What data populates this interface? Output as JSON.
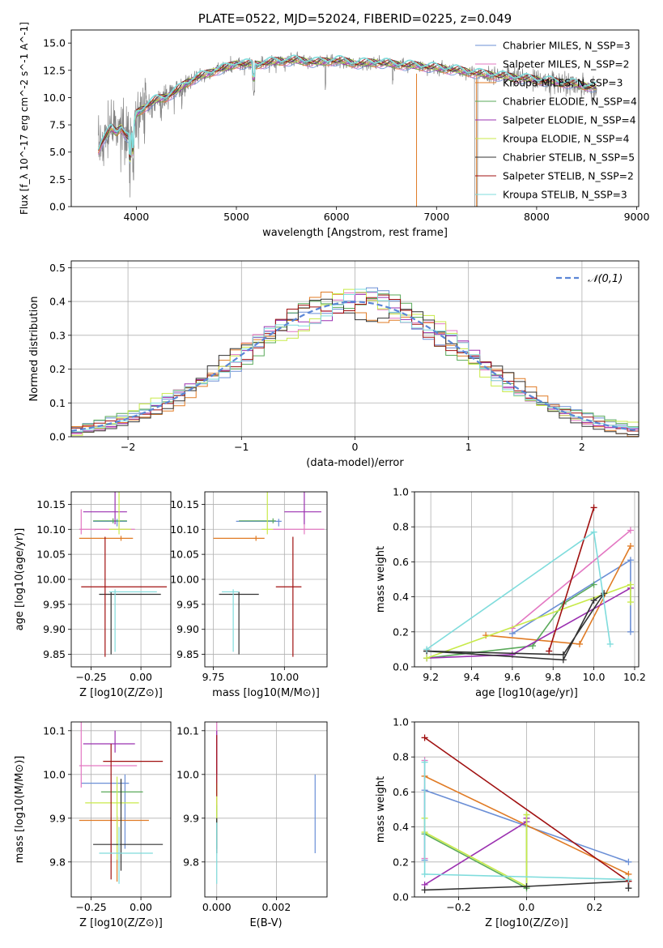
{
  "chart_data": [
    {
      "id": "spectrum",
      "type": "line",
      "title": "PLATE=0522, MJD=52024, FIBERID=0225, z=0.049",
      "xlabel": "wavelength [Angstrom, rest frame]",
      "ylabel": "Flux [f_λ 10^-17 erg cm^-2 s^-1 A^-1]",
      "xlim": [
        3350,
        9020
      ],
      "ylim": [
        0,
        16.2
      ],
      "xticks": [
        4000,
        5000,
        6000,
        7000,
        8000,
        9000
      ],
      "yticks": [
        0.0,
        2.5,
        5.0,
        7.5,
        10.0,
        12.5,
        15.0
      ],
      "legend_position": "upper-right",
      "grid": false,
      "series": [
        {
          "name": "Chabrier MILES, N_SSP=3",
          "color": "#6b8fd6"
        },
        {
          "name": "Salpeter MILES, N_SSP=2",
          "color": "#e377c2"
        },
        {
          "name": "Kroupa MILES, N_SSP=3",
          "color": "#e07b25"
        },
        {
          "name": "Chabrier ELODIE, N_SSP=4",
          "color": "#5aaa5a"
        },
        {
          "name": "Salpeter ELODIE, N_SSP=4",
          "color": "#9b30b0"
        },
        {
          "name": "Kroupa ELODIE, N_SSP=4",
          "color": "#c8ea4a"
        },
        {
          "name": "Chabrier STELIB, N_SSP=5",
          "color": "#333333"
        },
        {
          "name": "Salpeter STELIB, N_SSP=2",
          "color": "#a01010"
        },
        {
          "name": "Kroupa STELIB, N_SSP=3",
          "color": "#7fdcdc"
        }
      ],
      "data_color": "#808080",
      "continuum": {
        "x": [
          3620,
          3650,
          3700,
          3750,
          3800,
          3850,
          3900,
          3950,
          4000,
          4100,
          4200,
          4300,
          4400,
          4500,
          4600,
          4700,
          4800,
          4900,
          5000,
          5200,
          5400,
          5600,
          5800,
          6000,
          6200,
          6400,
          6600,
          6800,
          7000,
          7200,
          7400,
          7600,
          7800,
          8000,
          8200,
          8400,
          8600
        ],
        "y": [
          5.2,
          5.8,
          6.5,
          7.2,
          6.8,
          7.3,
          6.5,
          6.0,
          8.5,
          9.2,
          9.8,
          10.0,
          10.6,
          11.3,
          11.8,
          12.1,
          12.5,
          12.7,
          13.1,
          13.0,
          13.3,
          13.4,
          13.2,
          13.4,
          13.1,
          13.2,
          13.0,
          12.9,
          12.7,
          12.5,
          12.2,
          12.0,
          11.8,
          11.6,
          11.4,
          11.2,
          10.9
        ]
      }
    },
    {
      "id": "residuals",
      "type": "line",
      "xlabel": "(data-model)/error",
      "ylabel": "Normed distribution",
      "xlim": [
        -2.5,
        2.5
      ],
      "ylim": [
        0,
        0.52
      ],
      "xticks": [
        -2,
        -1,
        0,
        1,
        2
      ],
      "yticks": [
        0.0,
        0.1,
        0.2,
        0.3,
        0.4,
        0.5
      ],
      "grid": true,
      "reference_curve": {
        "name": "𝒩(0,1)",
        "color": "#5b86d6",
        "style": "dashed"
      },
      "histogram_bin_width": 0.1,
      "histogram_jitter": [
        0.016,
        -0.012,
        0.02,
        -0.018,
        0.01,
        0.022,
        -0.02,
        0.006,
        -0.008
      ]
    },
    {
      "id": "age-vs-Z",
      "type": "scatter",
      "xlabel": "Z [log10(Z/Z⊙)]",
      "ylabel": "age [log10(age/yr)]",
      "xlim": [
        -0.35,
        0.15
      ],
      "ylim": [
        9.825,
        10.175
      ],
      "xticks": [
        -0.25,
        0.0
      ],
      "yticks": [
        9.85,
        9.9,
        9.95,
        10.0,
        10.05,
        10.1,
        10.15
      ],
      "grid": true,
      "errorbars": [
        {
          "c": "#6b8fd6",
          "x": -0.12,
          "y": 10.116,
          "xe": [
            0.12,
            0.05
          ],
          "ye": [
            0.01,
            0.005
          ]
        },
        {
          "c": "#e377c2",
          "x": -0.3,
          "y": 10.1,
          "xe": [
            0.01,
            0.27
          ],
          "ye": [
            0.01,
            0.04
          ]
        },
        {
          "c": "#e07b25",
          "x": -0.1,
          "y": 10.082,
          "xe": [
            0.21,
            0.06
          ],
          "ye": [
            0.005,
            0.005
          ]
        },
        {
          "c": "#5aaa5a",
          "x": -0.14,
          "y": 10.117,
          "xe": [
            0.1,
            0.07
          ],
          "ye": [
            0.005,
            0.005
          ]
        },
        {
          "c": "#9b30b0",
          "x": -0.13,
          "y": 10.135,
          "xe": [
            0.16,
            0.06
          ],
          "ye": [
            0.025,
            0.29
          ]
        },
        {
          "c": "#c8ea4a",
          "x": -0.11,
          "y": 10.1,
          "xe": [
            0.05,
            0.06
          ],
          "ye": [
            0.01,
            0.13
          ]
        },
        {
          "c": "#333333",
          "x": -0.15,
          "y": 9.97,
          "xe": [
            0.06,
            0.25
          ],
          "ye": [
            0.12,
            0.005
          ]
        },
        {
          "c": "#a01010",
          "x": -0.18,
          "y": 9.985,
          "xe": [
            0.12,
            0.31
          ],
          "ye": [
            0.14,
            0.1
          ]
        },
        {
          "c": "#7fdcdc",
          "x": -0.13,
          "y": 9.975,
          "xe": [
            0.03,
            0.21
          ],
          "ye": [
            0.12,
            0.005
          ]
        }
      ]
    },
    {
      "id": "age-vs-mass",
      "type": "scatter",
      "xlabel": "mass [log10(M/M⊙)]",
      "ylabel": "",
      "xlim": [
        9.72,
        10.15
      ],
      "ylim": [
        9.825,
        10.175
      ],
      "xticks": [
        9.75,
        10.0
      ],
      "yticks": [
        9.85,
        9.9,
        9.95,
        10.0,
        10.05,
        10.1,
        10.15
      ],
      "grid": true,
      "errorbars": [
        {
          "c": "#6b8fd6",
          "x": 9.98,
          "y": 10.116,
          "xe": [
            0.15,
            0.01
          ],
          "ye": [
            0.01,
            0.005
          ]
        },
        {
          "c": "#e377c2",
          "x": 10.07,
          "y": 10.1,
          "xe": [
            0.11,
            0.07
          ],
          "ye": [
            0.01,
            0.04
          ]
        },
        {
          "c": "#e07b25",
          "x": 9.9,
          "y": 10.082,
          "xe": [
            0.15,
            0.03
          ],
          "ye": [
            0.005,
            0.005
          ]
        },
        {
          "c": "#5aaa5a",
          "x": 9.96,
          "y": 10.117,
          "xe": [
            0.12,
            0.01
          ],
          "ye": [
            0.005,
            0.005
          ]
        },
        {
          "c": "#9b30b0",
          "x": 10.07,
          "y": 10.135,
          "xe": [
            0.07,
            0.06
          ],
          "ye": [
            0.025,
            0.1
          ]
        },
        {
          "c": "#c8ea4a",
          "x": 9.94,
          "y": 10.1,
          "xe": [
            0.02,
            0.02
          ],
          "ye": [
            0.01,
            0.13
          ]
        },
        {
          "c": "#333333",
          "x": 9.84,
          "y": 9.97,
          "xe": [
            0.07,
            0.07
          ],
          "ye": [
            0.12,
            0.005
          ]
        },
        {
          "c": "#a01010",
          "x": 10.03,
          "y": 9.985,
          "xe": [
            0.06,
            0.03
          ],
          "ye": [
            0.14,
            0.1
          ]
        },
        {
          "c": "#7fdcdc",
          "x": 9.82,
          "y": 9.975,
          "xe": [
            0.04,
            0.02
          ],
          "ye": [
            0.12,
            0.005
          ]
        }
      ]
    },
    {
      "id": "mass-weight-vs-age",
      "type": "line",
      "xlabel": "age [log10(age/yr)]",
      "ylabel": "mass weight",
      "xlim": [
        9.12,
        10.22
      ],
      "ylim": [
        0,
        1.0
      ],
      "xticks": [
        9.2,
        9.4,
        9.6,
        9.8,
        10.0,
        10.2
      ],
      "yticks": [
        0.0,
        0.2,
        0.4,
        0.6,
        0.8,
        1.0
      ],
      "grid": true,
      "series": [
        {
          "color": "#6b8fd6",
          "x": [
            10.18,
            10.18,
            9.6
          ],
          "y": [
            0.2,
            0.61,
            0.19
          ]
        },
        {
          "color": "#e377c2",
          "x": [
            10.18,
            9.6
          ],
          "y": [
            0.78,
            0.22
          ]
        },
        {
          "color": "#e07b25",
          "x": [
            10.18,
            9.93,
            9.47
          ],
          "y": [
            0.69,
            0.13,
            0.18
          ]
        },
        {
          "color": "#5aaa5a",
          "x": [
            9.18,
            9.7,
            9.85,
            10.0
          ],
          "y": [
            0.05,
            0.12,
            0.36,
            0.47
          ]
        },
        {
          "color": "#9b30b0",
          "x": [
            9.18,
            9.6,
            10.18
          ],
          "y": [
            0.05,
            0.07,
            0.45
          ]
        },
        {
          "color": "#c8ea4a",
          "x": [
            10.18,
            10.18,
            9.18
          ],
          "y": [
            0.37,
            0.47,
            0.05
          ]
        },
        {
          "color": "#333333",
          "x": [
            9.18,
            9.85,
            10.0,
            10.05,
            9.85,
            9.18
          ],
          "y": [
            0.09,
            0.04,
            0.38,
            0.42,
            0.07,
            0.09
          ]
        },
        {
          "color": "#a01010",
          "x": [
            9.78,
            10.0
          ],
          "y": [
            0.09,
            0.91
          ]
        },
        {
          "color": "#7fdcdc",
          "x": [
            9.18,
            10.0,
            10.08
          ],
          "y": [
            0.1,
            0.77,
            0.13
          ]
        }
      ]
    },
    {
      "id": "mass-vs-Z",
      "type": "scatter",
      "xlabel": "Z [log10(Z/Z⊙)]",
      "ylabel": "mass [log10(M/M⊙)]",
      "xlim": [
        -0.35,
        0.15
      ],
      "ylim": [
        9.72,
        10.12
      ],
      "xticks": [
        -0.25,
        0.0
      ],
      "yticks": [
        9.8,
        9.9,
        10.0,
        10.1
      ],
      "grid": true,
      "errorbars": [
        {
          "c": "#6b8fd6",
          "x": -0.08,
          "y": 9.98,
          "xe": [
            0.22,
            0.02
          ],
          "ye": [
            0.15,
            0.02
          ]
        },
        {
          "c": "#e377c2",
          "x": -0.3,
          "y": 10.02,
          "xe": [
            0.01,
            0.28
          ],
          "ye": [
            0.05,
            0.1
          ]
        },
        {
          "c": "#e07b25",
          "x": -0.12,
          "y": 9.895,
          "xe": [
            0.19,
            0.16
          ],
          "ye": [
            0.14,
            0.01
          ]
        },
        {
          "c": "#5aaa5a",
          "x": -0.1,
          "y": 9.96,
          "xe": [
            0.1,
            0.11
          ],
          "ye": [
            0.03,
            0.01
          ]
        },
        {
          "c": "#9b30b0",
          "x": -0.13,
          "y": 10.07,
          "xe": [
            0.16,
            0.1
          ],
          "ye": [
            0.02,
            0.03
          ]
        },
        {
          "c": "#c8ea4a",
          "x": -0.12,
          "y": 9.935,
          "xe": [
            0.16,
            0.11
          ],
          "ye": [
            0.13,
            0.06
          ]
        },
        {
          "c": "#333333",
          "x": -0.1,
          "y": 9.84,
          "xe": [
            0.14,
            0.21
          ],
          "ye": [
            0.06,
            0.15
          ]
        },
        {
          "c": "#a01010",
          "x": -0.15,
          "y": 10.03,
          "xe": [
            0.04,
            0.26
          ],
          "ye": [
            0.27,
            0.04
          ]
        },
        {
          "c": "#7fdcdc",
          "x": -0.11,
          "y": 9.82,
          "xe": [
            0.1,
            0.17
          ],
          "ye": [
            0.07,
            0.06
          ]
        }
      ]
    },
    {
      "id": "mass-vs-ebv",
      "type": "scatter",
      "xlabel": "E(B-V)",
      "ylabel": "",
      "xlim": [
        -0.0004,
        0.0037
      ],
      "ylim": [
        9.72,
        10.12
      ],
      "xticks": [
        0.0,
        0.002
      ],
      "yticks": [
        9.8,
        9.9,
        10.0,
        10.1
      ],
      "grid": true,
      "errorbars": [
        {
          "c": "#6b8fd6",
          "x": 0.0033,
          "y": 9.92,
          "xe": [
            0,
            0
          ],
          "ye": [
            0.1,
            0.08
          ]
        },
        {
          "c": "#e377c2",
          "x": 0.0,
          "y": 10.05,
          "xe": [
            0,
            0
          ],
          "ye": [
            0.07,
            0.09
          ]
        },
        {
          "c": "#e07b25",
          "x": 0.0,
          "y": 9.9,
          "xe": [
            0,
            0
          ],
          "ye": [
            0.05,
            0.05
          ]
        },
        {
          "c": "#5aaa5a",
          "x": 0.0,
          "y": 9.88,
          "xe": [
            0,
            0
          ],
          "ye": [
            0.05,
            0.05
          ]
        },
        {
          "c": "#9b30b0",
          "x": 0.0,
          "y": 10.05,
          "xe": [
            0,
            0
          ],
          "ye": [
            0.05,
            0.05
          ]
        },
        {
          "c": "#c8ea4a",
          "x": 0.0,
          "y": 9.94,
          "xe": [
            0,
            0
          ],
          "ye": [
            0.04,
            0.04
          ]
        },
        {
          "c": "#333333",
          "x": 0.0,
          "y": 9.86,
          "xe": [
            0,
            0
          ],
          "ye": [
            0.04,
            0.04
          ]
        },
        {
          "c": "#a01010",
          "x": 0.0,
          "y": 10.03,
          "xe": [
            0,
            0
          ],
          "ye": [
            0.08,
            0.06
          ]
        },
        {
          "c": "#7fdcdc",
          "x": 0.0,
          "y": 9.82,
          "xe": [
            0,
            0
          ],
          "ye": [
            0.07,
            0.07
          ]
        }
      ]
    },
    {
      "id": "mass-weight-vs-Z",
      "type": "line",
      "xlabel": "Z [log10(Z/Z⊙)]",
      "ylabel": "mass weight",
      "xlim": [
        -0.33,
        0.33
      ],
      "ylim": [
        0,
        1.0
      ],
      "xticks": [
        -0.2,
        0.0,
        0.2
      ],
      "yticks": [
        0.0,
        0.2,
        0.4,
        0.6,
        0.8,
        1.0
      ],
      "grid": true,
      "series": [
        {
          "color": "#6b8fd6",
          "x": [
            -0.3,
            -0.3,
            0.3
          ],
          "y": [
            0.21,
            0.61,
            0.2
          ]
        },
        {
          "color": "#e377c2",
          "x": [
            -0.3,
            -0.3
          ],
          "y": [
            0.78,
            0.22
          ]
        },
        {
          "color": "#e07b25",
          "x": [
            -0.3,
            0.3
          ],
          "y": [
            0.69,
            0.13
          ]
        },
        {
          "color": "#5aaa5a",
          "x": [
            -0.3,
            0.0,
            0.0
          ],
          "y": [
            0.36,
            0.05,
            0.47
          ]
        },
        {
          "color": "#9b30b0",
          "x": [
            -0.3,
            0.0,
            0.0
          ],
          "y": [
            0.07,
            0.43,
            0.45
          ]
        },
        {
          "color": "#c8ea4a",
          "x": [
            -0.3,
            -0.3,
            0.0,
            0.0
          ],
          "y": [
            0.45,
            0.37,
            0.06,
            0.47
          ]
        },
        {
          "color": "#333333",
          "x": [
            -0.3,
            0.0,
            0.3,
            0.3
          ],
          "y": [
            0.04,
            0.06,
            0.09,
            0.05
          ]
        },
        {
          "color": "#a01010",
          "x": [
            -0.3,
            0.3
          ],
          "y": [
            0.91,
            0.09
          ]
        },
        {
          "color": "#7fdcdc",
          "x": [
            -0.3,
            -0.3,
            0.3
          ],
          "y": [
            0.77,
            0.13,
            0.1
          ]
        }
      ]
    }
  ]
}
